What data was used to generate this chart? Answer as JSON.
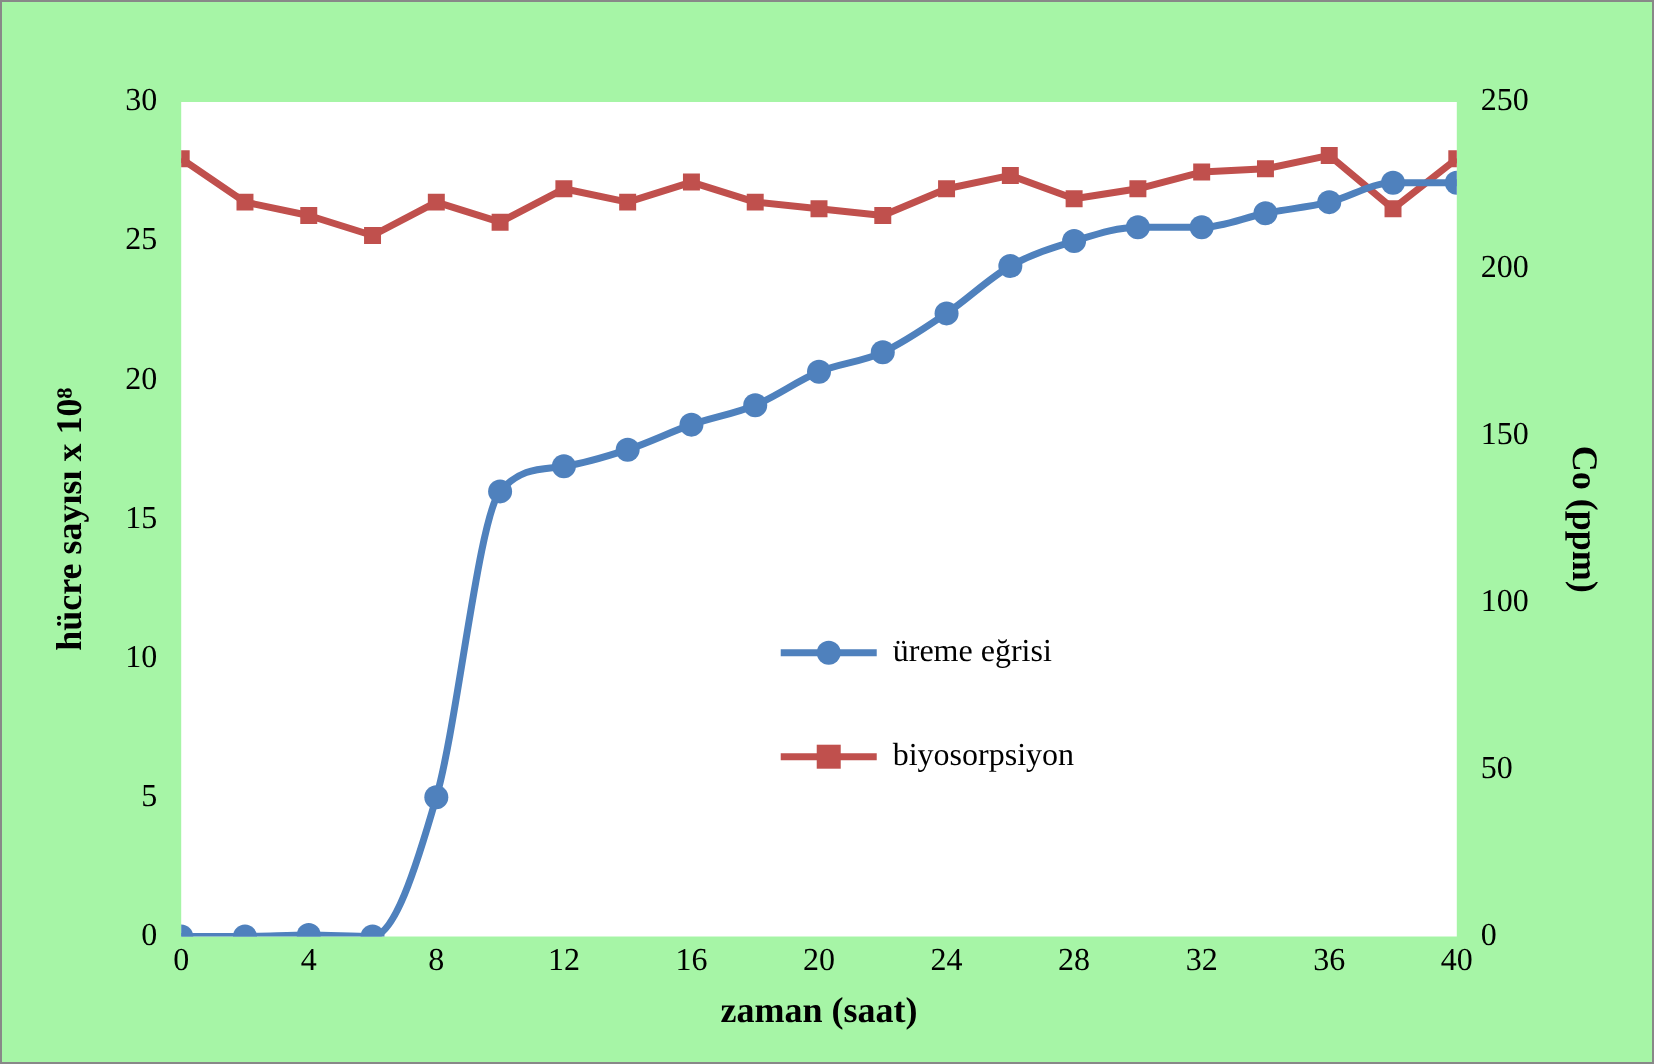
{
  "chart_data": {
    "type": "line",
    "xlabel": "zaman (saat)",
    "ylabel": "hücre sayısı x 10⁸",
    "y2label": "Co (ppm)",
    "x": [
      0,
      2,
      4,
      6,
      8,
      10,
      12,
      14,
      16,
      18,
      20,
      22,
      24,
      26,
      28,
      30,
      32,
      34,
      36,
      38,
      40
    ],
    "xlim": [
      0,
      40
    ],
    "xticks": [
      0,
      4,
      8,
      12,
      16,
      20,
      24,
      28,
      32,
      36,
      40
    ],
    "ylim": [
      0,
      30
    ],
    "yticks": [
      0,
      5,
      10,
      15,
      20,
      25,
      30
    ],
    "y2lim": [
      0,
      250
    ],
    "y2ticks": [
      0,
      50,
      100,
      150,
      200,
      250
    ],
    "grid": false,
    "legend": "right",
    "series": [
      {
        "name": "üreme eğrisi",
        "color": "#4f81bd",
        "marker": "circle",
        "values": [
          0,
          0,
          0.05,
          0,
          5,
          16,
          16.9,
          17.5,
          18.4,
          19.1,
          20.3,
          21,
          22.4,
          24.1,
          25,
          25.5,
          25.5,
          26,
          26.4,
          27.1,
          27.1
        ]
      },
      {
        "name": "biyosorpsiyon",
        "color": "#c0504d",
        "marker": "square",
        "axis": "y2",
        "values": [
          233,
          220,
          216,
          210,
          220,
          214,
          224,
          220,
          226,
          220,
          218,
          216,
          224,
          228,
          221,
          224,
          229,
          230,
          234,
          218,
          233
        ]
      }
    ]
  }
}
